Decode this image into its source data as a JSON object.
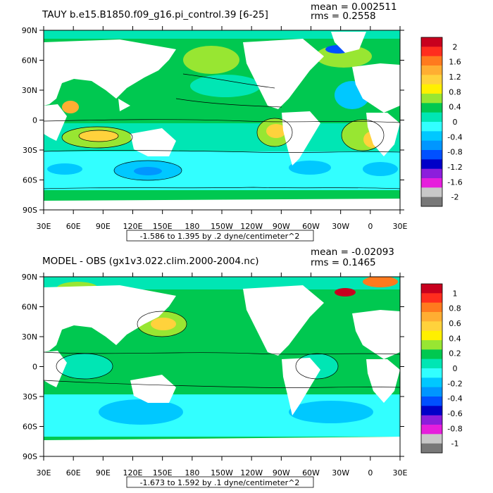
{
  "chart_data": [
    {
      "type": "contour-map",
      "title": "TAUY b.e15.B1850.f09_g16.pi_control.39 [6-25]",
      "stats": {
        "mean": "mean = 0.002511",
        "rms": "rms = 0.2558"
      },
      "range_note": "-1.586 to 1.395 by .2 dyne/centimeter^2",
      "x_ticks": [
        "30E",
        "60E",
        "90E",
        "120E",
        "150E",
        "180",
        "150W",
        "120W",
        "90W",
        "60W",
        "30W",
        "0",
        "30E"
      ],
      "y_ticks": [
        "90N",
        "60N",
        "30N",
        "0",
        "30S",
        "60S",
        "90S"
      ],
      "colorbar": {
        "labels": [
          "2",
          "1.6",
          "1.2",
          "0.8",
          "0.4",
          "0",
          "-0.4",
          "-0.8",
          "-1.2",
          "-1.6",
          "-2"
        ],
        "colors": [
          "#c8001e",
          "#ff2d1e",
          "#ff7a1e",
          "#ffae32",
          "#ffd23c",
          "#fff000",
          "#98e632",
          "#00c850",
          "#00e6b4",
          "#32ffff",
          "#00c8ff",
          "#0096ff",
          "#0050ff",
          "#0000c8",
          "#8c1edc",
          "#e61edc",
          "#c8c8c8",
          "#787878"
        ]
      }
    },
    {
      "type": "contour-map",
      "title": "MODEL - OBS (gx1v3.022.clim.2000-2004.nc)",
      "stats": {
        "mean": "mean = -0.02093",
        "rms": "rms = 0.1465"
      },
      "range_note": "-1.673 to 1.592 by .1 dyne/centimeter^2",
      "x_ticks": [
        "30E",
        "60E",
        "90E",
        "120E",
        "150E",
        "180",
        "150W",
        "120W",
        "90W",
        "60W",
        "30W",
        "0",
        "30E"
      ],
      "y_ticks": [
        "90N",
        "60N",
        "30N",
        "0",
        "30S",
        "60S",
        "90S"
      ],
      "colorbar": {
        "labels": [
          "1",
          "0.8",
          "0.6",
          "0.4",
          "0.2",
          "0",
          "-0.2",
          "-0.4",
          "-0.6",
          "-0.8",
          "-1"
        ],
        "colors": [
          "#c8001e",
          "#ff2d1e",
          "#ff7a1e",
          "#ffae32",
          "#ffd23c",
          "#fff000",
          "#98e632",
          "#00c850",
          "#00e6b4",
          "#32ffff",
          "#00c8ff",
          "#0096ff",
          "#0050ff",
          "#0000c8",
          "#8c1edc",
          "#e61edc",
          "#c8c8c8",
          "#787878"
        ]
      }
    }
  ]
}
